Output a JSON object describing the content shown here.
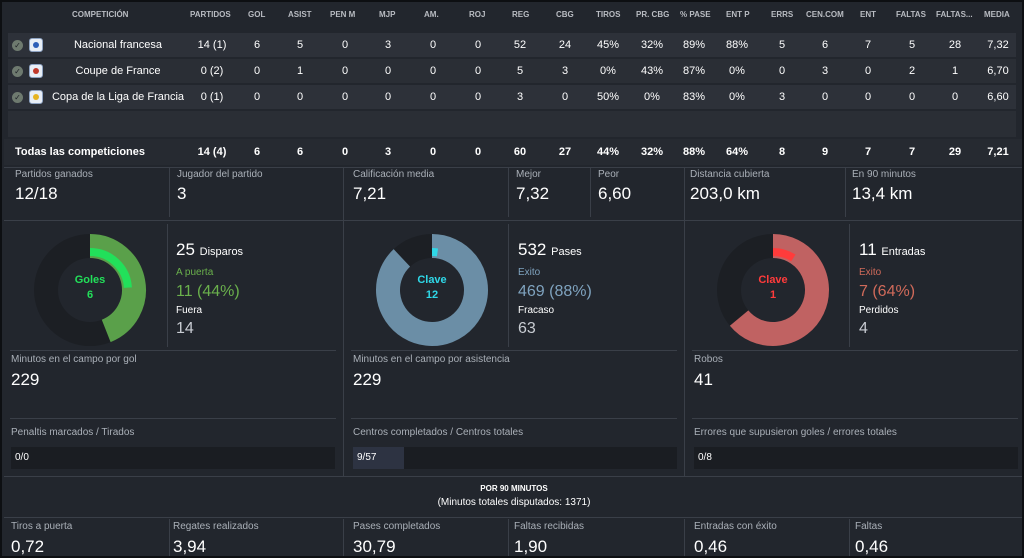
{
  "table": {
    "headers": [
      "COMPETICIÓN",
      "PARTIDOS",
      "GOL",
      "ASIST",
      "PEN M",
      "MJP",
      "AM.",
      "ROJ",
      "REG",
      "CBG",
      "TIROS",
      "PR. CBG",
      "% PASE",
      "ENT P",
      "ERRS",
      "CEN.COM",
      "ENT",
      "FALTAS",
      "FALTAS...",
      "MEDIA"
    ],
    "rows": [
      {
        "competition": "Nacional francesa",
        "values": [
          "14 (1)",
          "6",
          "5",
          "0",
          "3",
          "0",
          "0",
          "52",
          "24",
          "45%",
          "32%",
          "89%",
          "88%",
          "5",
          "6",
          "7",
          "5",
          "28",
          "7,32"
        ],
        "crest_color": "#2d5fb8"
      },
      {
        "competition": "Coupe de France",
        "values": [
          "0 (2)",
          "0",
          "1",
          "0",
          "0",
          "0",
          "0",
          "5",
          "3",
          "0%",
          "43%",
          "87%",
          "0%",
          "0",
          "3",
          "0",
          "2",
          "1",
          "6,70"
        ],
        "crest_color": "#c0392b"
      },
      {
        "competition": "Copa de la Liga de Francia",
        "values": [
          "0 (1)",
          "0",
          "0",
          "0",
          "0",
          "0",
          "0",
          "3",
          "0",
          "50%",
          "0%",
          "83%",
          "0%",
          "3",
          "0",
          "0",
          "0",
          "0",
          "6,60"
        ],
        "crest_color": "#e6b422"
      }
    ],
    "total": {
      "label": "Todas las competiciones",
      "values": [
        "14 (4)",
        "6",
        "6",
        "0",
        "3",
        "0",
        "0",
        "60",
        "27",
        "44%",
        "32%",
        "88%",
        "64%",
        "8",
        "9",
        "7",
        "7",
        "29",
        "7,21"
      ]
    }
  },
  "summary": {
    "partidos_ganados": {
      "label": "Partidos ganados",
      "value": "12/18"
    },
    "jugador_partido": {
      "label": "Jugador del partido",
      "value": "3"
    },
    "calificacion": {
      "label": "Calificación media",
      "value": "7,21"
    },
    "mejor": {
      "label": "Mejor",
      "value": "7,32"
    },
    "peor": {
      "label": "Peor",
      "value": "6,60"
    },
    "distancia": {
      "label": "Distancia cubierta",
      "value": "203,0 km"
    },
    "en90": {
      "label": "En 90 minutos",
      "value": "13,4 km"
    }
  },
  "panels": {
    "shots": {
      "donut_label": "Goles",
      "donut_value": "6",
      "total": "25",
      "total_label": "Disparos",
      "on_label": "A puerta",
      "on_value": "11 (44%)",
      "off_label": "Fuera",
      "off_value": "14",
      "fraction_outer": 0.44,
      "fraction_inner": 0.24,
      "color": "#5aa04a",
      "accent": "#22e05a",
      "on_color": "#6ab04c"
    },
    "passes": {
      "donut_label": "Clave",
      "donut_value": "12",
      "total": "532",
      "total_label": "Pases",
      "on_label": "Exito",
      "on_value": "469 (88%)",
      "off_label": "Fracaso",
      "off_value": "63",
      "fraction_outer": 0.88,
      "fraction_inner": 0.023,
      "color": "#6b8ea6",
      "accent": "#2fd8e8",
      "on_color": "#7fa3bf"
    },
    "tackles": {
      "donut_label": "Clave",
      "donut_value": "1",
      "total": "11",
      "total_label": "Entradas",
      "on_label": "Exito",
      "on_value": "7 (64%)",
      "off_label": "Perdidos",
      "off_value": "4",
      "fraction_outer": 0.64,
      "fraction_inner": 0.09,
      "color": "#c06262",
      "accent": "#ff3b3b",
      "on_color": "#d06a5a"
    }
  },
  "minutes": {
    "gol": {
      "label": "Minutos en el campo por gol",
      "value": "229"
    },
    "asist": {
      "label": "Minutos en el campo por asistencia",
      "value": "229"
    },
    "robos": {
      "label": "Robos",
      "value": "41"
    }
  },
  "bars": {
    "penaltis": {
      "label": "Penaltis marcados / Tirados",
      "value": "0/0",
      "fraction": 0
    },
    "centros": {
      "label": "Centros completados / Centros totales",
      "value": "9/57",
      "fraction": 0.158
    },
    "errores": {
      "label": "Errores que supusieron goles / errores totales",
      "value": "0/8",
      "fraction": 0
    }
  },
  "per90": {
    "title": "POR 90 MINUTOS",
    "subtitle": "(Minutos totales disputados: 1371)",
    "items": [
      {
        "label": "Tiros a puerta",
        "value": "0,72"
      },
      {
        "label": "Regates realizados",
        "value": "3,94"
      },
      {
        "label": "Pases completados",
        "value": "30,79"
      },
      {
        "label": "Faltas recibidas",
        "value": "1,90"
      },
      {
        "label": "Entradas con éxito",
        "value": "0,46"
      },
      {
        "label": "Faltas",
        "value": "0,46"
      }
    ]
  }
}
